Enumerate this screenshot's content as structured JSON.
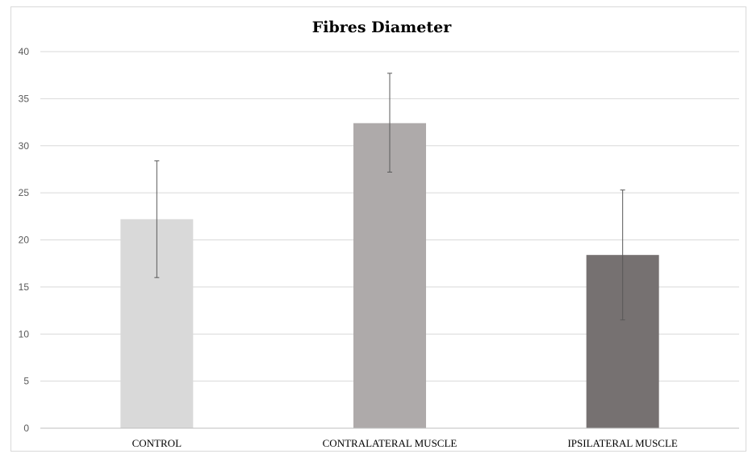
{
  "chart_data": {
    "type": "bar",
    "title": "Fibres Diameter",
    "categories": [
      "CONTROL",
      "CONTRALATERAL MUSCLE",
      "IPSILATERAL MUSCLE"
    ],
    "values": [
      22.2,
      32.4,
      18.4
    ],
    "error_bars": [
      {
        "low": 16.0,
        "high": 28.4
      },
      {
        "low": 27.2,
        "high": 37.7
      },
      {
        "low": 11.5,
        "high": 25.3
      }
    ],
    "bar_colors": [
      "#d9d9d9",
      "#aeaaaa",
      "#767171"
    ],
    "ylim": [
      0,
      40
    ],
    "yticks": [
      "0",
      "5",
      "10",
      "15",
      "20",
      "25",
      "30",
      "35",
      "40"
    ],
    "grid": true,
    "xlabel": "",
    "ylabel": ""
  }
}
